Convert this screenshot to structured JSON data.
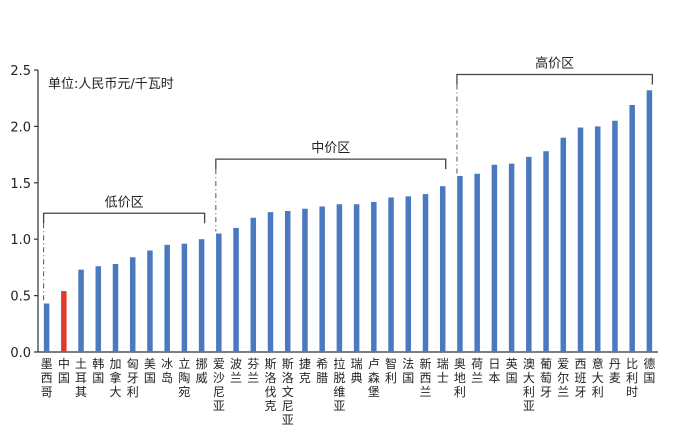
{
  "chart_data": {
    "type": "bar",
    "unit_label": "单位:人民币元/千瓦时",
    "ylim": [
      0,
      2.5
    ],
    "yticks": [
      "0.0",
      "0.5",
      "1.0",
      "1.5",
      "2.0",
      "2.5"
    ],
    "grid": false,
    "colors": {
      "bar": "#4a79c0",
      "highlight": "#e03a2e",
      "axis": "#333333"
    },
    "highlight_category": "中国",
    "categories": [
      "墨西哥",
      "中国",
      "土耳其",
      "韩国",
      "加拿大",
      "匈牙利",
      "美国",
      "冰岛",
      "立陶宛",
      "挪威",
      "爱沙尼亚",
      "波兰",
      "芬兰",
      "斯洛伐克",
      "斯洛文尼亚",
      "捷克",
      "希腊",
      "拉脱维亚",
      "瑞典",
      "卢森堡",
      "智利",
      "法国",
      "新西兰",
      "瑞士",
      "奥地利",
      "荷兰",
      "日本",
      "英国",
      "澳大利亚",
      "葡萄牙",
      "爱尔兰",
      "西班牙",
      "意大利",
      "丹麦",
      "比利时",
      "德国"
    ],
    "values": [
      0.43,
      0.54,
      0.73,
      0.76,
      0.78,
      0.84,
      0.9,
      0.95,
      0.96,
      1.0,
      1.05,
      1.1,
      1.19,
      1.24,
      1.25,
      1.27,
      1.29,
      1.31,
      1.31,
      1.33,
      1.37,
      1.38,
      1.4,
      1.47,
      1.56,
      1.58,
      1.66,
      1.67,
      1.73,
      1.78,
      1.9,
      1.99,
      2.0,
      2.05,
      2.19,
      2.32
    ],
    "zones": [
      {
        "label": "低价区",
        "start": 0,
        "end": 9,
        "level": 1.23
      },
      {
        "label": "中价区",
        "start": 10,
        "end": 23,
        "level": 1.71
      },
      {
        "label": "高价区",
        "start": 24,
        "end": 35,
        "level": 2.46
      }
    ]
  }
}
